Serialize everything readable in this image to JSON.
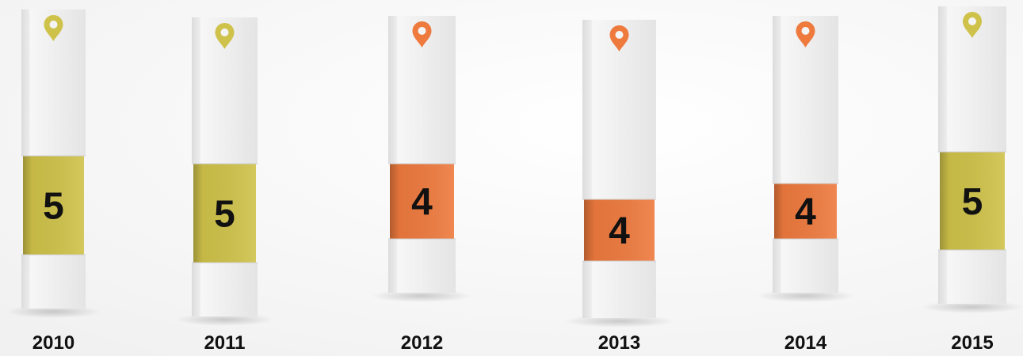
{
  "columns": [
    {
      "label": "2010",
      "value": 5,
      "color": "#cfc24a"
    },
    {
      "label": "2011",
      "value": 5,
      "color": "#cfc24a"
    },
    {
      "label": "2012",
      "value": 4,
      "color": "#ee7a3e"
    },
    {
      "label": "2013",
      "value": 4,
      "color": "#ee7a3e"
    },
    {
      "label": "2014",
      "value": 4,
      "color": "#ee7a3e"
    },
    {
      "label": "2015",
      "value": 5,
      "color": "#cfc24a"
    }
  ]
}
